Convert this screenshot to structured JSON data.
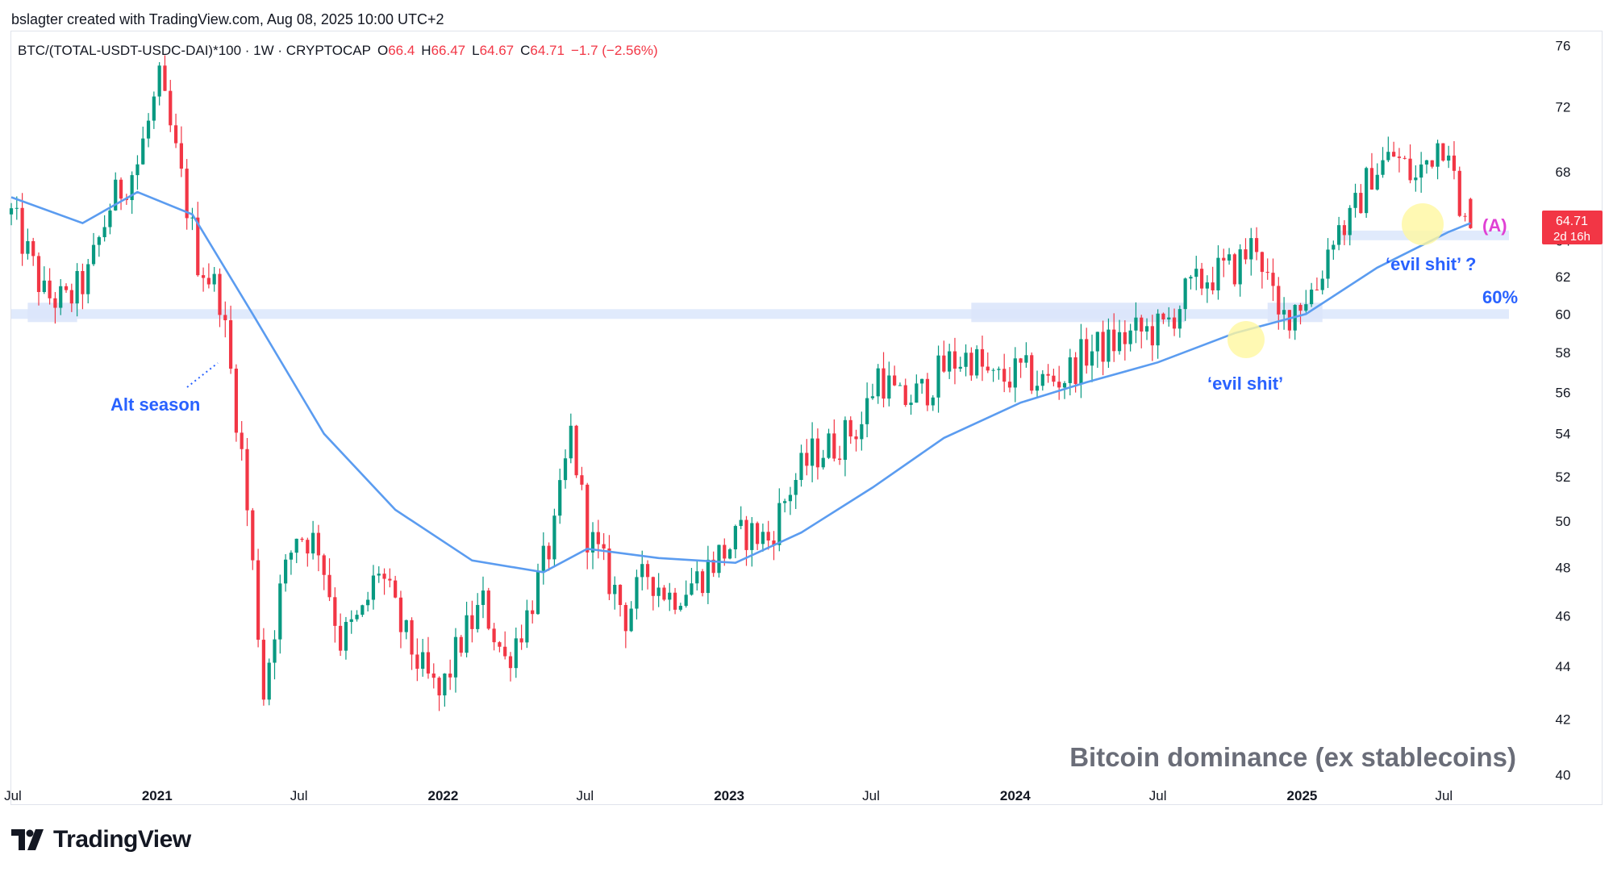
{
  "header": {
    "attribution": "bslagter created with TradingView.com, Aug 08, 2025 10:00 UTC+2"
  },
  "legend": {
    "symbol": "BTC/(TOTAL-USDT-USDC-DAI)*100 · 1W · CRYPTOCAP",
    "open_label": "O",
    "open": "66.4",
    "high_label": "H",
    "high": "66.47",
    "low_label": "L",
    "low": "64.67",
    "close_label": "C",
    "close": "64.71",
    "change": "−1.7 (−2.56%)"
  },
  "price_badge": {
    "value": "64.71",
    "countdown": "2d 16h"
  },
  "annotations": {
    "alt_season": "Alt season",
    "evil_1": "‘evil shit’",
    "evil_2": "‘evil shit’ ?",
    "level_a": "(A)",
    "level_60": "60%",
    "watermark": "Bitcoin dominance (ex stablecoins)"
  },
  "branding": {
    "logo_text": "TradingView"
  },
  "colors": {
    "up": "#089981",
    "down": "#f23645",
    "ma": "#5b9cf0",
    "zone": "#dbe6fb",
    "annotation_blue": "#2962ff",
    "annotation_magenta": "#e040d4",
    "highlight": "#fff7a0"
  },
  "chart_data": {
    "type": "candlestick",
    "title": "Bitcoin dominance (ex stablecoins)",
    "symbol": "BTC/(TOTAL-USDT-USDC-DAI)*100",
    "interval": "1W",
    "y_scale": "log",
    "ylim": [
      39.5,
      77
    ],
    "y_ticks": [
      76,
      72,
      68,
      64,
      62,
      60,
      58,
      56,
      54,
      52,
      50,
      48,
      46,
      44,
      42,
      40
    ],
    "x_range": [
      "2020-06-29",
      "2025-10-27"
    ],
    "x_ticks": [
      {
        "date": "2020-07-01",
        "label": "Jul"
      },
      {
        "date": "2021-01-01",
        "label": "2021"
      },
      {
        "date": "2021-07-01",
        "label": "Jul"
      },
      {
        "date": "2022-01-01",
        "label": "2022"
      },
      {
        "date": "2022-07-01",
        "label": "Jul"
      },
      {
        "date": "2023-01-01",
        "label": "2023"
      },
      {
        "date": "2023-07-01",
        "label": "Jul"
      },
      {
        "date": "2024-01-01",
        "label": "2024"
      },
      {
        "date": "2024-07-01",
        "label": "Jul"
      },
      {
        "date": "2025-01-01",
        "label": "2025"
      },
      {
        "date": "2025-07-01",
        "label": "Jul"
      }
    ],
    "close_anchors": [
      [
        "2020-06-29",
        65.5
      ],
      [
        "2020-08-10",
        61.0
      ],
      [
        "2020-09-07",
        60.6
      ],
      [
        "2020-10-05",
        62.0
      ],
      [
        "2020-11-02",
        66.0
      ],
      [
        "2020-12-07",
        68.5
      ],
      [
        "2021-01-04",
        73.5
      ],
      [
        "2021-01-25",
        69.0
      ],
      [
        "2021-02-22",
        63.0
      ],
      [
        "2021-03-22",
        61.0
      ],
      [
        "2021-04-19",
        53.0
      ],
      [
        "2021-05-17",
        43.0
      ],
      [
        "2021-06-07",
        47.0
      ],
      [
        "2021-06-28",
        49.5
      ],
      [
        "2021-07-26",
        49.0
      ],
      [
        "2021-08-23",
        45.0
      ],
      [
        "2021-09-20",
        46.0
      ],
      [
        "2021-10-11",
        48.0
      ],
      [
        "2021-11-08",
        45.5
      ],
      [
        "2021-12-06",
        43.8
      ],
      [
        "2021-12-27",
        42.8
      ],
      [
        "2022-01-24",
        45.0
      ],
      [
        "2022-02-21",
        46.5
      ],
      [
        "2022-03-21",
        44.2
      ],
      [
        "2022-04-18",
        46.0
      ],
      [
        "2022-05-23",
        49.5
      ],
      [
        "2022-06-13",
        54.0
      ],
      [
        "2022-07-04",
        49.5
      ],
      [
        "2022-08-01",
        47.5
      ],
      [
        "2022-08-22",
        46.0
      ],
      [
        "2022-09-19",
        47.8
      ],
      [
        "2022-10-17",
        46.8
      ],
      [
        "2022-11-21",
        47.5
      ],
      [
        "2022-12-19",
        48.5
      ],
      [
        "2023-01-23",
        49.5
      ],
      [
        "2023-02-20",
        49.2
      ],
      [
        "2023-03-20",
        51.5
      ],
      [
        "2023-04-17",
        53.0
      ],
      [
        "2023-05-15",
        53.5
      ],
      [
        "2023-06-19",
        54.5
      ],
      [
        "2023-07-10",
        57.0
      ],
      [
        "2023-08-07",
        55.5
      ],
      [
        "2023-09-04",
        56.0
      ],
      [
        "2023-10-09",
        57.5
      ],
      [
        "2023-11-06",
        57.8
      ],
      [
        "2023-12-04",
        56.5
      ],
      [
        "2024-01-08",
        57.0
      ],
      [
        "2024-02-05",
        56.5
      ],
      [
        "2024-03-04",
        56.8
      ],
      [
        "2024-04-01",
        58.0
      ],
      [
        "2024-05-06",
        58.5
      ],
      [
        "2024-06-03",
        59.0
      ],
      [
        "2024-07-08",
        59.2
      ],
      [
        "2024-08-05",
        61.0
      ],
      [
        "2024-09-02",
        62.0
      ],
      [
        "2024-10-07",
        62.5
      ],
      [
        "2024-11-04",
        64.0
      ],
      [
        "2024-12-02",
        59.5
      ],
      [
        "2024-12-23",
        60.5
      ],
      [
        "2025-01-20",
        61.5
      ],
      [
        "2025-02-10",
        64.5
      ],
      [
        "2025-03-03",
        65.0
      ],
      [
        "2025-03-31",
        68.0
      ],
      [
        "2025-04-28",
        69.0
      ],
      [
        "2025-05-26",
        67.5
      ],
      [
        "2025-06-23",
        69.8
      ],
      [
        "2025-07-07",
        70.0
      ],
      [
        "2025-07-21",
        65.0
      ],
      [
        "2025-08-04",
        64.71
      ]
    ],
    "moving_average": [
      [
        "2020-06-29",
        66.5
      ],
      [
        "2020-09-28",
        65.0
      ],
      [
        "2020-12-07",
        66.8
      ],
      [
        "2021-02-15",
        65.5
      ],
      [
        "2021-05-03",
        60.0
      ],
      [
        "2021-08-02",
        54.0
      ],
      [
        "2021-11-01",
        50.5
      ],
      [
        "2022-02-07",
        48.3
      ],
      [
        "2022-05-09",
        47.8
      ],
      [
        "2022-07-04",
        48.8
      ],
      [
        "2022-10-03",
        48.4
      ],
      [
        "2023-01-09",
        48.2
      ],
      [
        "2023-04-03",
        49.5
      ],
      [
        "2023-07-03",
        51.5
      ],
      [
        "2023-10-02",
        53.8
      ],
      [
        "2024-01-08",
        55.5
      ],
      [
        "2024-04-01",
        56.5
      ],
      [
        "2024-07-01",
        57.5
      ],
      [
        "2024-10-07",
        59.0
      ],
      [
        "2025-01-06",
        60.0
      ],
      [
        "2025-04-07",
        62.5
      ],
      [
        "2025-07-07",
        64.5
      ],
      [
        "2025-08-04",
        65.0
      ]
    ],
    "horizontal_zones": [
      {
        "label": "60%",
        "value": 60.0,
        "from": "2020-06-29",
        "to": "2025-09-22"
      },
      {
        "label": "(A)",
        "value": 64.3,
        "from": "2025-02-17",
        "to": "2025-09-22"
      }
    ],
    "last": {
      "open": 66.4,
      "high": 66.47,
      "low": 64.67,
      "close": 64.71,
      "change": -1.7,
      "change_pct": -2.56
    }
  }
}
